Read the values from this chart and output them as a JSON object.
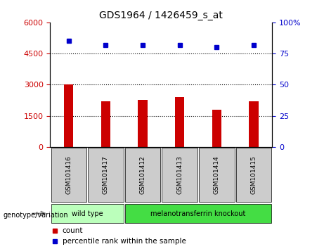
{
  "title": "GDS1964 / 1426459_s_at",
  "samples": [
    "GSM101416",
    "GSM101417",
    "GSM101412",
    "GSM101413",
    "GSM101414",
    "GSM101415"
  ],
  "counts": [
    3000,
    2200,
    2250,
    2400,
    1800,
    2200
  ],
  "percentiles": [
    85,
    82,
    82,
    82,
    80,
    82
  ],
  "bar_color": "#cc0000",
  "dot_color": "#0000cc",
  "left_ylim": [
    0,
    6000
  ],
  "left_yticks": [
    0,
    1500,
    3000,
    4500,
    6000
  ],
  "right_ylim": [
    0,
    100
  ],
  "right_yticks": [
    0,
    25,
    50,
    75,
    100
  ],
  "right_yticklabels": [
    "0",
    "25",
    "50",
    "75",
    "100%"
  ],
  "grid_values": [
    1500,
    3000,
    4500
  ],
  "legend_items": [
    {
      "label": "count",
      "color": "#cc0000"
    },
    {
      "label": "percentile rank within the sample",
      "color": "#0000cc"
    }
  ],
  "sample_box_color": "#cccccc",
  "wild_type_color": "#bbffbb",
  "knockout_color": "#44dd44",
  "wild_type_label": "wild type",
  "knockout_label": "melanotransferrin knockout",
  "geno_label": "genotype/variation",
  "figsize": [
    4.61,
    3.54
  ],
  "dpi": 100
}
